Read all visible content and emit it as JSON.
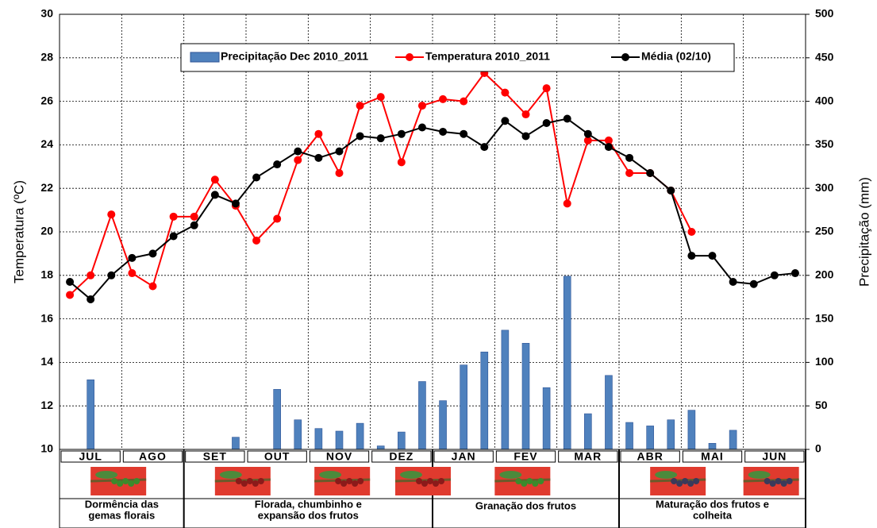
{
  "chart_data": {
    "type": "combo",
    "y_label": "Temperatura (ºC)",
    "y2_label": "Precipitação (mm)",
    "categories": [
      null,
      null,
      null,
      null,
      null,
      null,
      null,
      null,
      null,
      null,
      null,
      null,
      null,
      null,
      null,
      null,
      null,
      null,
      null,
      null,
      null,
      null,
      null,
      null,
      null,
      null,
      null,
      null,
      null,
      null,
      null,
      null,
      null,
      null,
      null,
      null
    ],
    "ylim": [
      10,
      30
    ],
    "yticks": [
      10,
      12,
      14,
      16,
      18,
      20,
      22,
      24,
      26,
      28,
      30
    ],
    "y2lim": [
      0,
      500
    ],
    "y2ticks": [
      0,
      50,
      100,
      150,
      200,
      250,
      300,
      350,
      400,
      450,
      500
    ],
    "grid": true,
    "legend": "top",
    "series": [
      {
        "name": "Precipitação Dec 2010_2011",
        "type": "bar",
        "axis": "y2",
        "color": "#4f81bd",
        "values": [
          0,
          80,
          0,
          0,
          0,
          0,
          0,
          0,
          14,
          0,
          69,
          34,
          24,
          21,
          30,
          4,
          20,
          78,
          56,
          97,
          112,
          137,
          122,
          71,
          199,
          41,
          85,
          31,
          27,
          34,
          45,
          7,
          22,
          null,
          null,
          null
        ]
      },
      {
        "name": "Temperatura 2010_2011",
        "type": "line",
        "color": "#ff0000",
        "values": [
          17.1,
          18.0,
          20.8,
          18.1,
          17.5,
          20.7,
          20.7,
          22.4,
          21.2,
          19.6,
          20.6,
          23.3,
          24.5,
          22.7,
          25.8,
          26.2,
          23.2,
          25.8,
          26.1,
          26.0,
          27.3,
          26.4,
          25.4,
          26.6,
          21.3,
          24.2,
          24.2,
          22.7,
          22.7,
          21.9,
          20.0,
          null,
          null,
          null,
          null,
          null
        ]
      },
      {
        "name": "Média (02/10)",
        "type": "line",
        "color": "#000000",
        "values": [
          17.7,
          16.9,
          18.0,
          18.8,
          19.0,
          19.8,
          20.3,
          21.7,
          21.3,
          22.5,
          23.1,
          23.7,
          23.4,
          23.7,
          24.4,
          24.3,
          24.5,
          24.8,
          24.6,
          24.5,
          23.9,
          25.1,
          24.4,
          25.0,
          25.2,
          24.5,
          23.9,
          23.4,
          22.7,
          21.9,
          18.9,
          18.9,
          17.7,
          17.6,
          18.0,
          18.1
        ]
      }
    ]
  },
  "calendar": {
    "months": [
      "JUL",
      "AGO",
      "SET",
      "OUT",
      "NOV",
      "DEZ",
      "JAN",
      "FEV",
      "MAR",
      "ABR",
      "MAI",
      "JUN"
    ],
    "phases": [
      {
        "lines": [
          "Dormência das",
          "gemas florais"
        ]
      },
      {
        "lines": [
          "Florada, chumbinho e",
          "expansão dos frutos"
        ]
      },
      {
        "lines": [
          "Granação dos frutos"
        ]
      },
      {
        "lines": [
          "Maturação dos frutos e",
          "colheita"
        ]
      }
    ]
  }
}
